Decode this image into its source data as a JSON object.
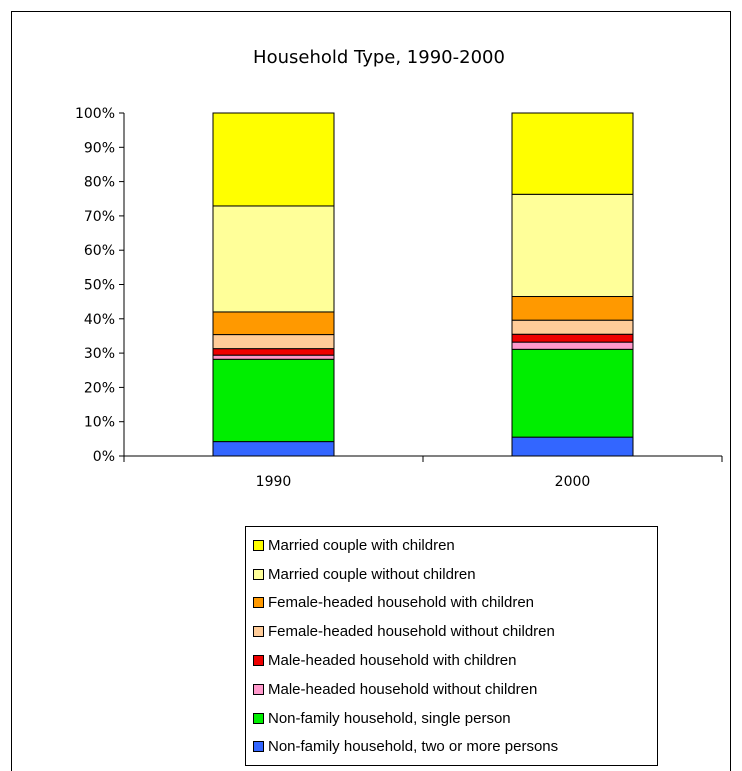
{
  "chart_data": {
    "type": "bar",
    "stacked": true,
    "percent_stacked": true,
    "title": "Household Type, 1990-2000",
    "categories": [
      "1990",
      "2000"
    ],
    "y_ticks": [
      "0%",
      "10%",
      "20%",
      "30%",
      "40%",
      "50%",
      "60%",
      "70%",
      "80%",
      "90%",
      "100%"
    ],
    "ylim": [
      0,
      100
    ],
    "legend_position": "bottom",
    "series": [
      {
        "name": "Non-family household, two or more persons",
        "color": "#3366ff",
        "values": [
          4.2,
          5.5
        ]
      },
      {
        "name": "Non-family household, single person",
        "color": "#00ee00",
        "values": [
          24.0,
          25.6
        ]
      },
      {
        "name": "Male-headed household without children",
        "color": "#ff99cc",
        "values": [
          1.2,
          2.1
        ]
      },
      {
        "name": "Male-headed household with children",
        "color": "#ee0000",
        "values": [
          1.9,
          2.3
        ]
      },
      {
        "name": "Female-headed household without children",
        "color": "#ffcc99",
        "values": [
          4.1,
          4.1
        ]
      },
      {
        "name": "Female-headed household with children",
        "color": "#ff9900",
        "values": [
          6.6,
          6.9
        ]
      },
      {
        "name": "Married couple without children",
        "color": "#ffff99",
        "values": [
          30.9,
          29.8
        ]
      },
      {
        "name": "Married couple with children",
        "color": "#ffff00",
        "values": [
          27.1,
          23.7
        ]
      }
    ]
  }
}
